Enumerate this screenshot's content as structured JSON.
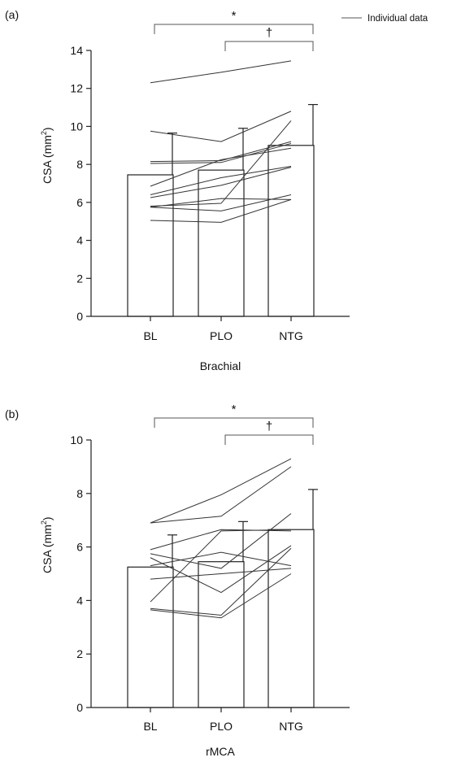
{
  "legend": {
    "label": "Individual data",
    "position": "top-right",
    "line_color": "#555555"
  },
  "chart_data": [
    {
      "type": "bar",
      "panel_label": "(a)",
      "xlabel": "Brachial",
      "ylabel_main": "CSA (mm",
      "ylabel_sup": "2",
      "ylabel_tail": ")",
      "categories": [
        "BL",
        "PLO",
        "NTG"
      ],
      "values": [
        7.45,
        7.7,
        9.0
      ],
      "error_upper": [
        9.65,
        9.9,
        11.15
      ],
      "ylim": [
        0,
        14
      ],
      "yticks": [
        0,
        2,
        4,
        6,
        8,
        10,
        12,
        14
      ],
      "ytick_labels": [
        "0",
        "2",
        "4",
        "6",
        "8",
        "10",
        "12",
        "14"
      ],
      "individual_data": [
        [
          12.3,
          12.85,
          13.45
        ],
        [
          9.75,
          9.2,
          10.8
        ],
        [
          8.15,
          8.2,
          9.2
        ],
        [
          8.05,
          8.1,
          9.1
        ],
        [
          6.85,
          8.25,
          8.85
        ],
        [
          6.4,
          7.3,
          7.9
        ],
        [
          6.25,
          6.9,
          7.85
        ],
        [
          5.8,
          5.95,
          10.3
        ],
        [
          5.75,
          6.2,
          6.15
        ],
        [
          5.75,
          5.55,
          6.4
        ],
        [
          5.05,
          4.95,
          6.15
        ]
      ],
      "significance": [
        {
          "from": 0,
          "to": 2,
          "symbol": "*"
        },
        {
          "from": 1,
          "to": 2,
          "symbol": "†"
        }
      ],
      "grid": false
    },
    {
      "type": "bar",
      "panel_label": "(b)",
      "xlabel": "rMCA",
      "ylabel_main": "CSA (mm",
      "ylabel_sup": "2",
      "ylabel_tail": ")",
      "categories": [
        "BL",
        "PLO",
        "NTG"
      ],
      "values": [
        5.25,
        5.45,
        6.65
      ],
      "error_upper": [
        6.45,
        6.95,
        8.15
      ],
      "ylim": [
        0,
        10
      ],
      "yticks": [
        0,
        2,
        4,
        6,
        8,
        10
      ],
      "ytick_labels": [
        "0",
        "2",
        "4",
        "6",
        "8",
        "10"
      ],
      "individual_data": [
        [
          6.9,
          7.95,
          9.3
        ],
        [
          6.9,
          7.15,
          9.0
        ],
        [
          5.9,
          6.65,
          6.6
        ],
        [
          5.75,
          5.2,
          7.25
        ],
        [
          5.6,
          4.3,
          6.05
        ],
        [
          5.3,
          5.8,
          5.3
        ],
        [
          4.8,
          5.0,
          5.2
        ],
        [
          3.95,
          6.6,
          6.65
        ],
        [
          3.7,
          3.45,
          5.95
        ],
        [
          3.65,
          3.35,
          5.0
        ]
      ],
      "significance": [
        {
          "from": 0,
          "to": 2,
          "symbol": "*"
        },
        {
          "from": 1,
          "to": 2,
          "symbol": "†"
        }
      ],
      "grid": false
    }
  ]
}
